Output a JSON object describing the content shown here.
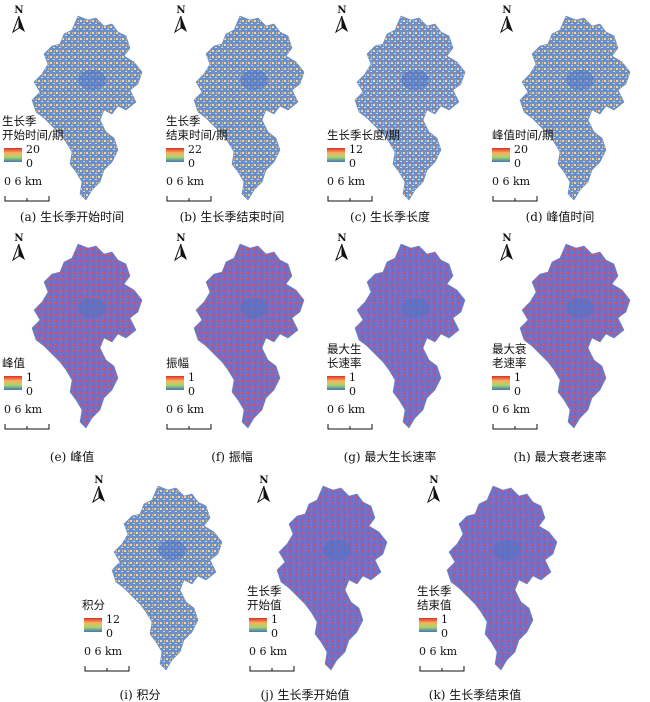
{
  "north_label": "N",
  "scale_label": "0   6 km",
  "ramp_colors": [
    "#d73027",
    "#fdae61",
    "#a6d96a",
    "#4575b4"
  ],
  "panels": [
    {
      "caption": "(a) 生长季开始时间",
      "legend_title": [
        "生长季",
        "开始时间/期"
      ],
      "max": "20",
      "min": "0",
      "style": "fine"
    },
    {
      "caption": "(b) 生长季结束时间",
      "legend_title": [
        "生长季",
        "结束时间/期"
      ],
      "max": "22",
      "min": "0",
      "style": "fine"
    },
    {
      "caption": "(c) 生长季长度",
      "legend_title": [
        "生长季长度/期"
      ],
      "max": "12",
      "min": "0",
      "style": "fine"
    },
    {
      "caption": "(d) 峰值时间",
      "legend_title": [
        "峰值时间/期"
      ],
      "max": "20",
      "min": "0",
      "style": "fine"
    },
    {
      "caption": "(e) 峰值",
      "legend_title": [
        "峰值"
      ],
      "max": "1",
      "min": "0",
      "style": "purple"
    },
    {
      "caption": "(f) 振幅",
      "legend_title": [
        "振幅"
      ],
      "max": "1",
      "min": "0",
      "style": "purple"
    },
    {
      "caption": "(g) 最大生长速率",
      "legend_title": [
        "最大生",
        "长速率"
      ],
      "max": "1",
      "min": "0",
      "style": "purple"
    },
    {
      "caption": "(h) 最大衰老速率",
      "legend_title": [
        "最大衰",
        "老速率"
      ],
      "max": "1",
      "min": "0",
      "style": "purple"
    },
    {
      "caption": "(i) 积分",
      "legend_title": [
        "积分"
      ],
      "max": "12",
      "min": "0",
      "style": "fine"
    },
    {
      "caption": "(j) 生长季开始值",
      "legend_title": [
        "生长季",
        "开始值"
      ],
      "max": "1",
      "min": "0",
      "style": "purple"
    },
    {
      "caption": "(k) 生长季结束值",
      "legend_title": [
        "生长季",
        "结束值"
      ],
      "max": "1",
      "min": "0",
      "style": "purple"
    }
  ]
}
